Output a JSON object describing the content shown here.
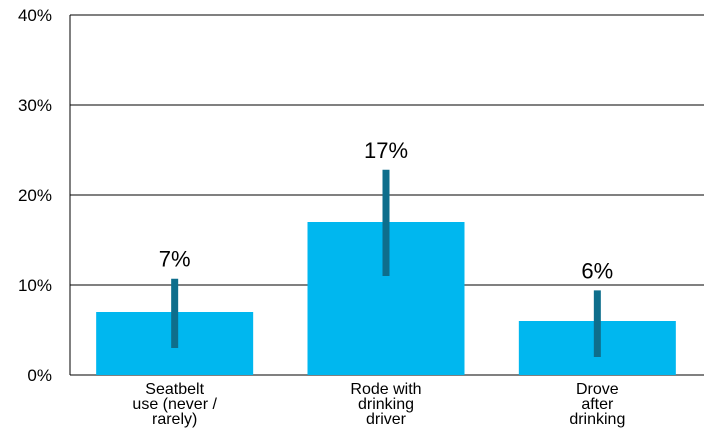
{
  "chart_data": {
    "type": "bar",
    "categories": [
      [
        "Seatbelt",
        "use (never /",
        "rarely)"
      ],
      [
        "Rode with",
        "drinking",
        "driver"
      ],
      [
        "Drove",
        "after",
        "drinking"
      ]
    ],
    "values": [
      7,
      17,
      6
    ],
    "data_labels": [
      "7%",
      "17%",
      "6%"
    ],
    "error_bars": [
      {
        "low": 3,
        "high": 10.7
      },
      {
        "low": 11,
        "high": 22.8
      },
      {
        "low": 2,
        "high": 9.4
      }
    ],
    "ylim": [
      0,
      40
    ],
    "yticks": [
      0,
      10,
      20,
      30,
      40
    ],
    "ytick_labels": [
      "0%",
      "10%",
      "20%",
      "30%",
      "40%"
    ],
    "grid": true,
    "colors": {
      "bar": "#00b7ef",
      "error": "#0e6e8c",
      "grid": "#000000"
    }
  }
}
